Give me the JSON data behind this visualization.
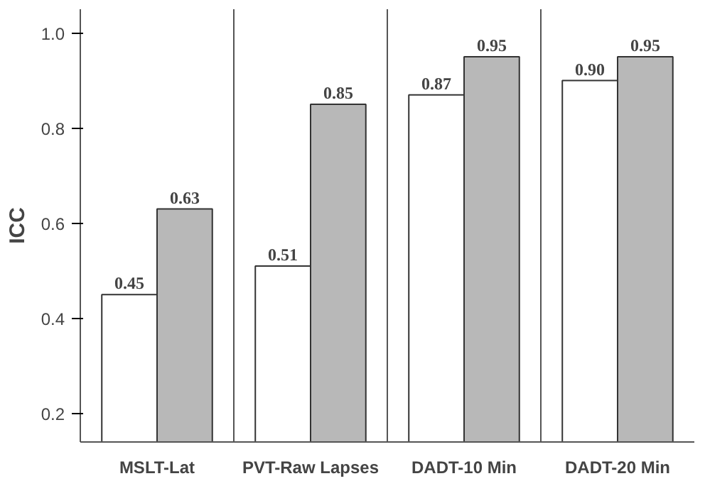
{
  "chart_data": {
    "type": "bar",
    "ylabel": "ICC",
    "categories": [
      "MSLT-Lat",
      "PVT-Raw Lapses",
      "DADT-10 Min",
      "DADT-20 Min"
    ],
    "series": [
      {
        "color": "#ffffff",
        "values": [
          0.45,
          0.51,
          0.87,
          0.9
        ],
        "value_labels": [
          "0.45",
          "0.51",
          "0.87",
          "0.90"
        ]
      },
      {
        "color": "#b8b8b8",
        "values": [
          0.63,
          0.85,
          0.95,
          0.95
        ],
        "value_labels": [
          "0.63",
          "0.85",
          "0.95",
          "0.95"
        ]
      }
    ],
    "ylim": [
      0.14,
      1.05
    ],
    "yticks": [
      0.2,
      0.4,
      0.6,
      0.8,
      {
        "value": 1.0,
        "label": "1.0"
      }
    ],
    "grid": "x"
  }
}
